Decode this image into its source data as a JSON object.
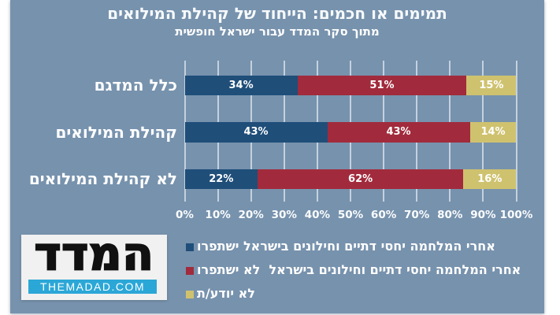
{
  "page": {
    "background": "#ffffff",
    "panel_background": "#7792ad"
  },
  "chart_data": {
    "type": "bar",
    "variant": "horizontal-stacked",
    "title": "תמימים או חכמים: הייחוד של קהילת המילואים",
    "subtitle": "מתוך סקר המדד עבור ישראל חופשית",
    "categories": [
      "כלל המדגם",
      "קהילת המילואים",
      "לא קהילת המילואים"
    ],
    "series": [
      {
        "name": "אחרי המלחמה יחסי דתיים וחילונים בישראל ישתפרו",
        "color": "#1f4e79",
        "values": [
          34,
          43,
          22
        ]
      },
      {
        "name": "אחרי המלחמה יחסי דתיים וחילונים בישראל  לא ישתפרו",
        "color": "#a12b3c",
        "values": [
          51,
          43,
          62
        ]
      },
      {
        "name": "לא יודע/ת",
        "color": "#cfc26f",
        "values": [
          15,
          14,
          16
        ]
      }
    ],
    "value_label_suffix": "%",
    "x_ticks": [
      "0%",
      "10%",
      "20%",
      "30%",
      "40%",
      "50%",
      "60%",
      "70%",
      "80%",
      "90%",
      "100%"
    ],
    "xlim": [
      0,
      100
    ],
    "grid": true,
    "gridline_color": "rgba(244,248,251,0.62)",
    "legend_position": "bottom",
    "text_color": "#ffffff"
  },
  "logo": {
    "name_hebrew": "המדד",
    "domain": "THEMADAD.COM",
    "bar_color": "#2ba7d7",
    "box_color": "#f1f1f1",
    "text_color": "#111111"
  }
}
